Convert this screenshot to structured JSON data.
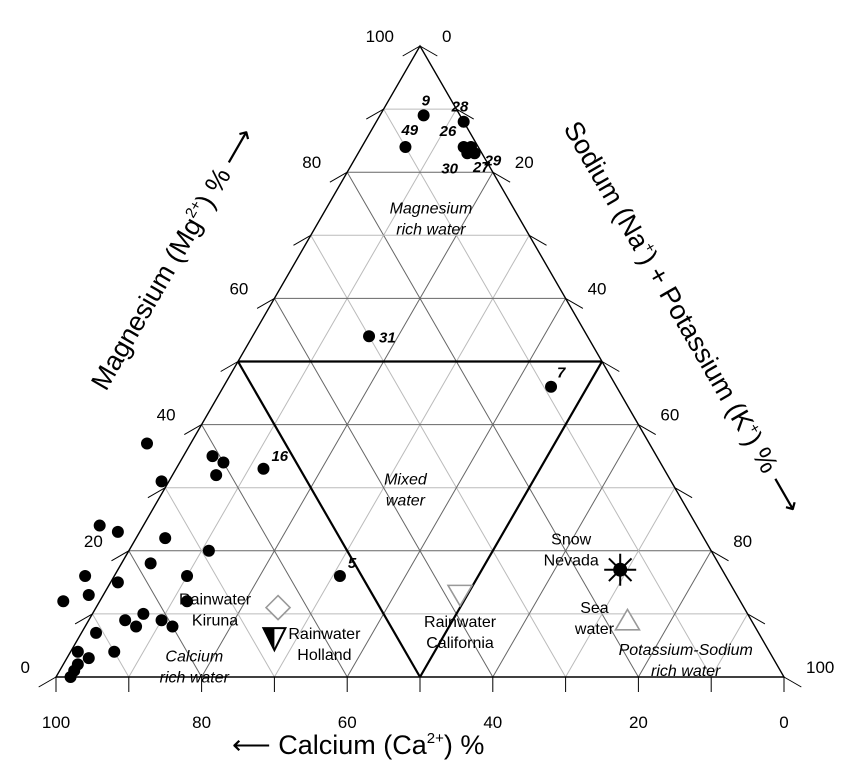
{
  "chart_data": {
    "type": "scatter",
    "subtype": "ternary",
    "axes": {
      "bottom": {
        "title": "Calcium (Ca",
        "ion": "2+",
        "tail": ") %",
        "ticks": [
          100,
          80,
          60,
          40,
          20,
          0
        ],
        "range": [
          0,
          100
        ]
      },
      "left": {
        "title": "Magnesium (Mg",
        "ion": "2+",
        "tail": ") %",
        "ticks": [
          0,
          20,
          40,
          60,
          80,
          100
        ],
        "range": [
          0,
          100
        ]
      },
      "right": {
        "title_a": "Sodium (Na",
        "ion_a": "+",
        "title_b": ") + Potassium (K",
        "ion_b": "+",
        "tail": ") %",
        "ticks": [
          0,
          20,
          40,
          60,
          80,
          100
        ],
        "range": [
          0,
          100
        ]
      }
    },
    "grid": true,
    "regions": [
      {
        "name": "magnesium-rich",
        "line1": "Magnesium",
        "line2": "rich water"
      },
      {
        "name": "mixed",
        "line1": "Mixed",
        "line2": "water"
      },
      {
        "name": "calcium-rich",
        "line1": "Calcium",
        "line2": "rich water"
      },
      {
        "name": "potassium-sodium-rich",
        "line1": "Potassium-Sodium",
        "line2": "rich water"
      }
    ],
    "reference_samples": [
      {
        "name": "snow-nevada",
        "line1": "Snow",
        "line2": "Nevada",
        "marker": "starburst",
        "ca": 14,
        "mg": 17,
        "nak": 69
      },
      {
        "name": "rainwater-california",
        "line1": "Rainwater",
        "line2": "California",
        "marker": "triangle-down-open",
        "ca": 38,
        "mg": 13,
        "nak": 49
      },
      {
        "name": "sea-water",
        "line1": "Sea",
        "line2": "water",
        "marker": "triangle-up-open",
        "ca": 17,
        "mg": 9,
        "nak": 74
      },
      {
        "name": "rainwater-kiruna",
        "line1": "Rainwater",
        "line2": "Kiruna",
        "marker": "diamond-open",
        "ca": 64,
        "mg": 11,
        "nak": 25
      },
      {
        "name": "rainwater-holland",
        "line1": "Rainwater",
        "line2": "Holland",
        "marker": "triangle-down-half",
        "ca": 67,
        "mg": 6,
        "nak": 27
      }
    ],
    "samples": [
      {
        "label": "9",
        "ca": 5,
        "mg": 89,
        "nak": 6
      },
      {
        "label": "28",
        "ca": 0,
        "mg": 88,
        "nak": 12
      },
      {
        "label": "49",
        "ca": 10,
        "mg": 84,
        "nak": 6
      },
      {
        "label": "26",
        "ca": 2,
        "mg": 84,
        "nak": 14
      },
      {
        "label": "27",
        "ca": 1,
        "mg": 84,
        "nak": 15
      },
      {
        "label": "30",
        "ca": 2,
        "mg": 83,
        "nak": 15
      },
      {
        "label": "29",
        "ca": 1,
        "mg": 83,
        "nak": 16
      },
      {
        "label": "31",
        "ca": 30,
        "mg": 54,
        "nak": 16
      },
      {
        "label": "7",
        "ca": 9,
        "mg": 46,
        "nak": 45
      },
      {
        "label": "16",
        "ca": 55,
        "mg": 33,
        "nak": 12
      },
      {
        "label": "5",
        "ca": 53,
        "mg": 16,
        "nak": 31
      },
      {
        "label": "",
        "ca": 69,
        "mg": 37,
        "nak": -6
      },
      {
        "label": "",
        "ca": 61,
        "mg": 35,
        "nak": 4
      },
      {
        "label": "",
        "ca": 60,
        "mg": 34,
        "nak": 6
      },
      {
        "label": "",
        "ca": 62,
        "mg": 32,
        "nak": 6
      },
      {
        "label": "",
        "ca": 70,
        "mg": 31,
        "nak": -1
      },
      {
        "label": "",
        "ca": 82,
        "mg": 24,
        "nak": -6
      },
      {
        "label": "",
        "ca": 80,
        "mg": 23,
        "nak": -3
      },
      {
        "label": "",
        "ca": 74,
        "mg": 22,
        "nak": 4
      },
      {
        "label": "",
        "ca": 69,
        "mg": 20,
        "nak": 11
      },
      {
        "label": "",
        "ca": 78,
        "mg": 18,
        "nak": 4
      },
      {
        "label": "",
        "ca": 74,
        "mg": 16,
        "nak": 10
      },
      {
        "label": "",
        "ca": 88,
        "mg": 16,
        "nak": -4
      },
      {
        "label": "",
        "ca": 89,
        "mg": 13,
        "nak": -2
      },
      {
        "label": "",
        "ca": 84,
        "mg": 15,
        "nak": 1
      },
      {
        "label": "",
        "ca": 76,
        "mg": 12,
        "nak": 12
      },
      {
        "label": "",
        "ca": 93,
        "mg": 12,
        "nak": -5
      },
      {
        "label": "",
        "ca": 83,
        "mg": 10,
        "nak": 7
      },
      {
        "label": "",
        "ca": 86,
        "mg": 9,
        "nak": 5
      },
      {
        "label": "",
        "ca": 81,
        "mg": 9,
        "nak": 10
      },
      {
        "label": "",
        "ca": 80,
        "mg": 8,
        "nak": 12
      },
      {
        "label": "",
        "ca": 85,
        "mg": 8,
        "nak": 7
      },
      {
        "label": "",
        "ca": 91,
        "mg": 7,
        "nak": 2
      },
      {
        "label": "",
        "ca": 90,
        "mg": 4,
        "nak": 6
      },
      {
        "label": "",
        "ca": 95,
        "mg": 4,
        "nak": 1
      },
      {
        "label": "",
        "ca": 94,
        "mg": 3,
        "nak": 3
      },
      {
        "label": "",
        "ca": 96,
        "mg": 2,
        "nak": 2
      },
      {
        "label": "",
        "ca": 97,
        "mg": 1,
        "nak": 2
      },
      {
        "label": "",
        "ca": 98,
        "mg": 0,
        "nak": 2
      }
    ]
  }
}
